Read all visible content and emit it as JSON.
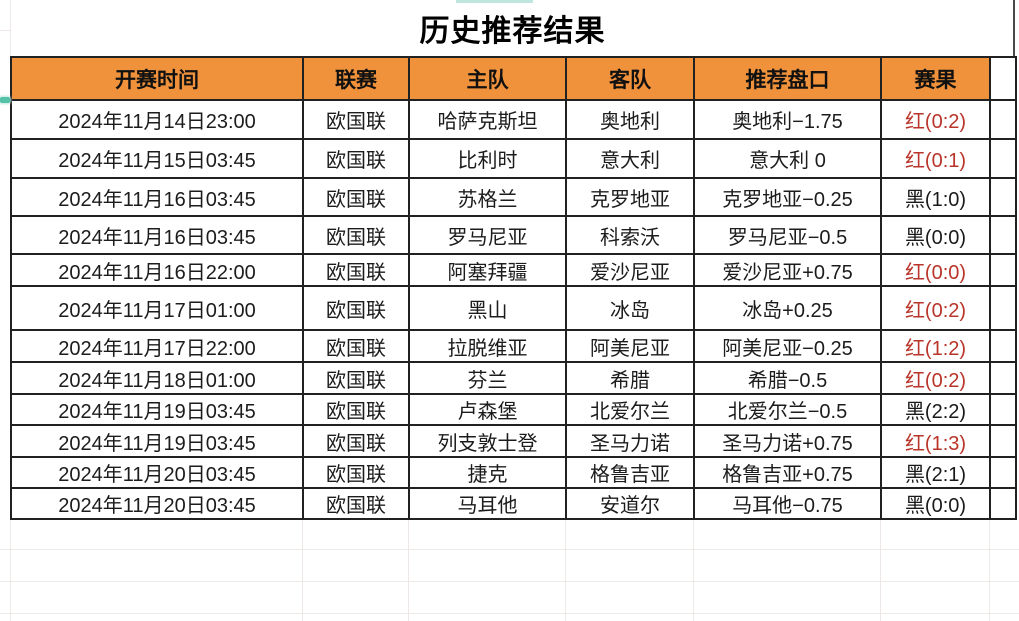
{
  "title": "历史推荐结果",
  "colors": {
    "header_bg": "#F0923B",
    "red_result": "#B93429",
    "black_result": "#1A1A1A",
    "border": "#212121",
    "grid_faint": "#EDE8E6",
    "teal_accent": "#55C1A6",
    "teal_accent_light": "#BFE5DF"
  },
  "table": {
    "headers": [
      "开赛时间",
      "联赛",
      "主队",
      "客队",
      "推荐盘口",
      "赛果"
    ],
    "rows": [
      {
        "time": "2024年11月14日23:00",
        "league": "欧国联",
        "home": "哈萨克斯坦",
        "away": "奥地利",
        "handicap": "奥地利−1.75",
        "result": "红(0:2)",
        "result_color": "red"
      },
      {
        "time": "2024年11月15日03:45",
        "league": "欧国联",
        "home": "比利时",
        "away": "意大利",
        "handicap": "意大利 0",
        "result": "红(0:1)",
        "result_color": "red"
      },
      {
        "time": "2024年11月16日03:45",
        "league": "欧国联",
        "home": "苏格兰",
        "away": "克罗地亚",
        "handicap": "克罗地亚−0.25",
        "result": "黑(1:0)",
        "result_color": "black"
      },
      {
        "time": "2024年11月16日03:45",
        "league": "欧国联",
        "home": "罗马尼亚",
        "away": "科索沃",
        "handicap": "罗马尼亚−0.5",
        "result": "黑(0:0)",
        "result_color": "black"
      },
      {
        "time": "2024年11月16日22:00",
        "league": "欧国联",
        "home": "阿塞拜疆",
        "away": "爱沙尼亚",
        "handicap": "爱沙尼亚+0.75",
        "result": "红(0:0)",
        "result_color": "red"
      },
      {
        "time": "2024年11月17日01:00",
        "league": "欧国联",
        "home": "黑山",
        "away": "冰岛",
        "handicap": "冰岛+0.25",
        "result": "红(0:2)",
        "result_color": "red"
      },
      {
        "time": "2024年11月17日22:00",
        "league": "欧国联",
        "home": "拉脱维亚",
        "away": "阿美尼亚",
        "handicap": "阿美尼亚−0.25",
        "result": "红(1:2)",
        "result_color": "red"
      },
      {
        "time": "2024年11月18日01:00",
        "league": "欧国联",
        "home": "芬兰",
        "away": "希腊",
        "handicap": "希腊−0.5",
        "result": "红(0:2)",
        "result_color": "red"
      },
      {
        "time": "2024年11月19日03:45",
        "league": "欧国联",
        "home": "卢森堡",
        "away": "北爱尔兰",
        "handicap": "北爱尔兰−0.5",
        "result": "黑(2:2)",
        "result_color": "black"
      },
      {
        "time": "2024年11月19日03:45",
        "league": "欧国联",
        "home": "列支敦士登",
        "away": "圣马力诺",
        "handicap": "圣马力诺+0.75",
        "result": "红(1:3)",
        "result_color": "red"
      },
      {
        "time": "2024年11月20日03:45",
        "league": "欧国联",
        "home": "捷克",
        "away": "格鲁吉亚",
        "handicap": "格鲁吉亚+0.75",
        "result": "黑(2:1)",
        "result_color": "black"
      },
      {
        "time": "2024年11月20日03:45",
        "league": "欧国联",
        "home": "马耳他",
        "away": "安道尔",
        "handicap": "马耳他−0.75",
        "result": "黑(0:0)",
        "result_color": "black"
      }
    ]
  }
}
